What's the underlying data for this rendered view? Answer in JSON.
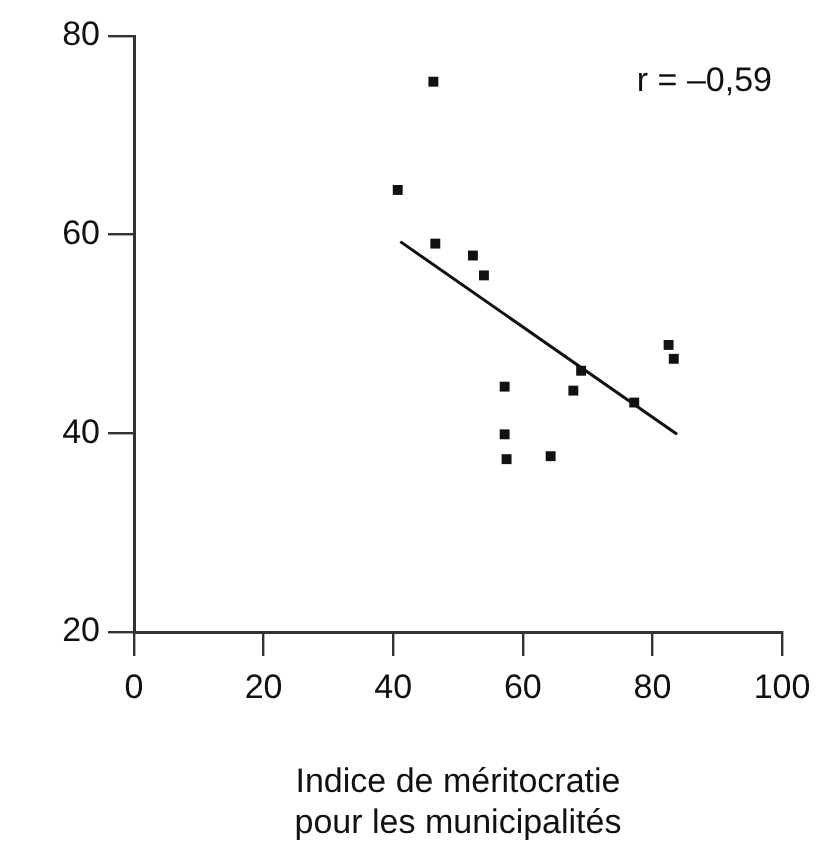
{
  "chart_data": {
    "type": "scatter",
    "xlabel": "Indice de méritocratie\npour les municipalités",
    "annotations": [
      "r = –0,59"
    ],
    "xlim": [
      0,
      100
    ],
    "xticks": [
      0,
      20,
      40,
      60,
      80,
      100
    ],
    "ylim": [
      20,
      80
    ],
    "yticks": [
      20,
      40,
      60,
      80
    ],
    "legend": false,
    "series": [
      {
        "marker": "square",
        "color": "#111111",
        "x": [
          40.7,
          46.2,
          46.5,
          52.3,
          54.0,
          57.2,
          57.2,
          57.5,
          64.3,
          67.8,
          69.0,
          77.2,
          82.5,
          83.3
        ],
        "values": [
          64.5,
          75.4,
          59.1,
          57.9,
          55.9,
          44.7,
          39.9,
          37.4,
          37.7,
          44.3,
          46.3,
          43.1,
          48.9,
          47.5
        ]
      },
      {
        "type": "line",
        "marker": "none",
        "color": "#111111",
        "x": [
          41.1,
          83.8
        ],
        "values": [
          59.3,
          39.9
        ]
      }
    ]
  }
}
